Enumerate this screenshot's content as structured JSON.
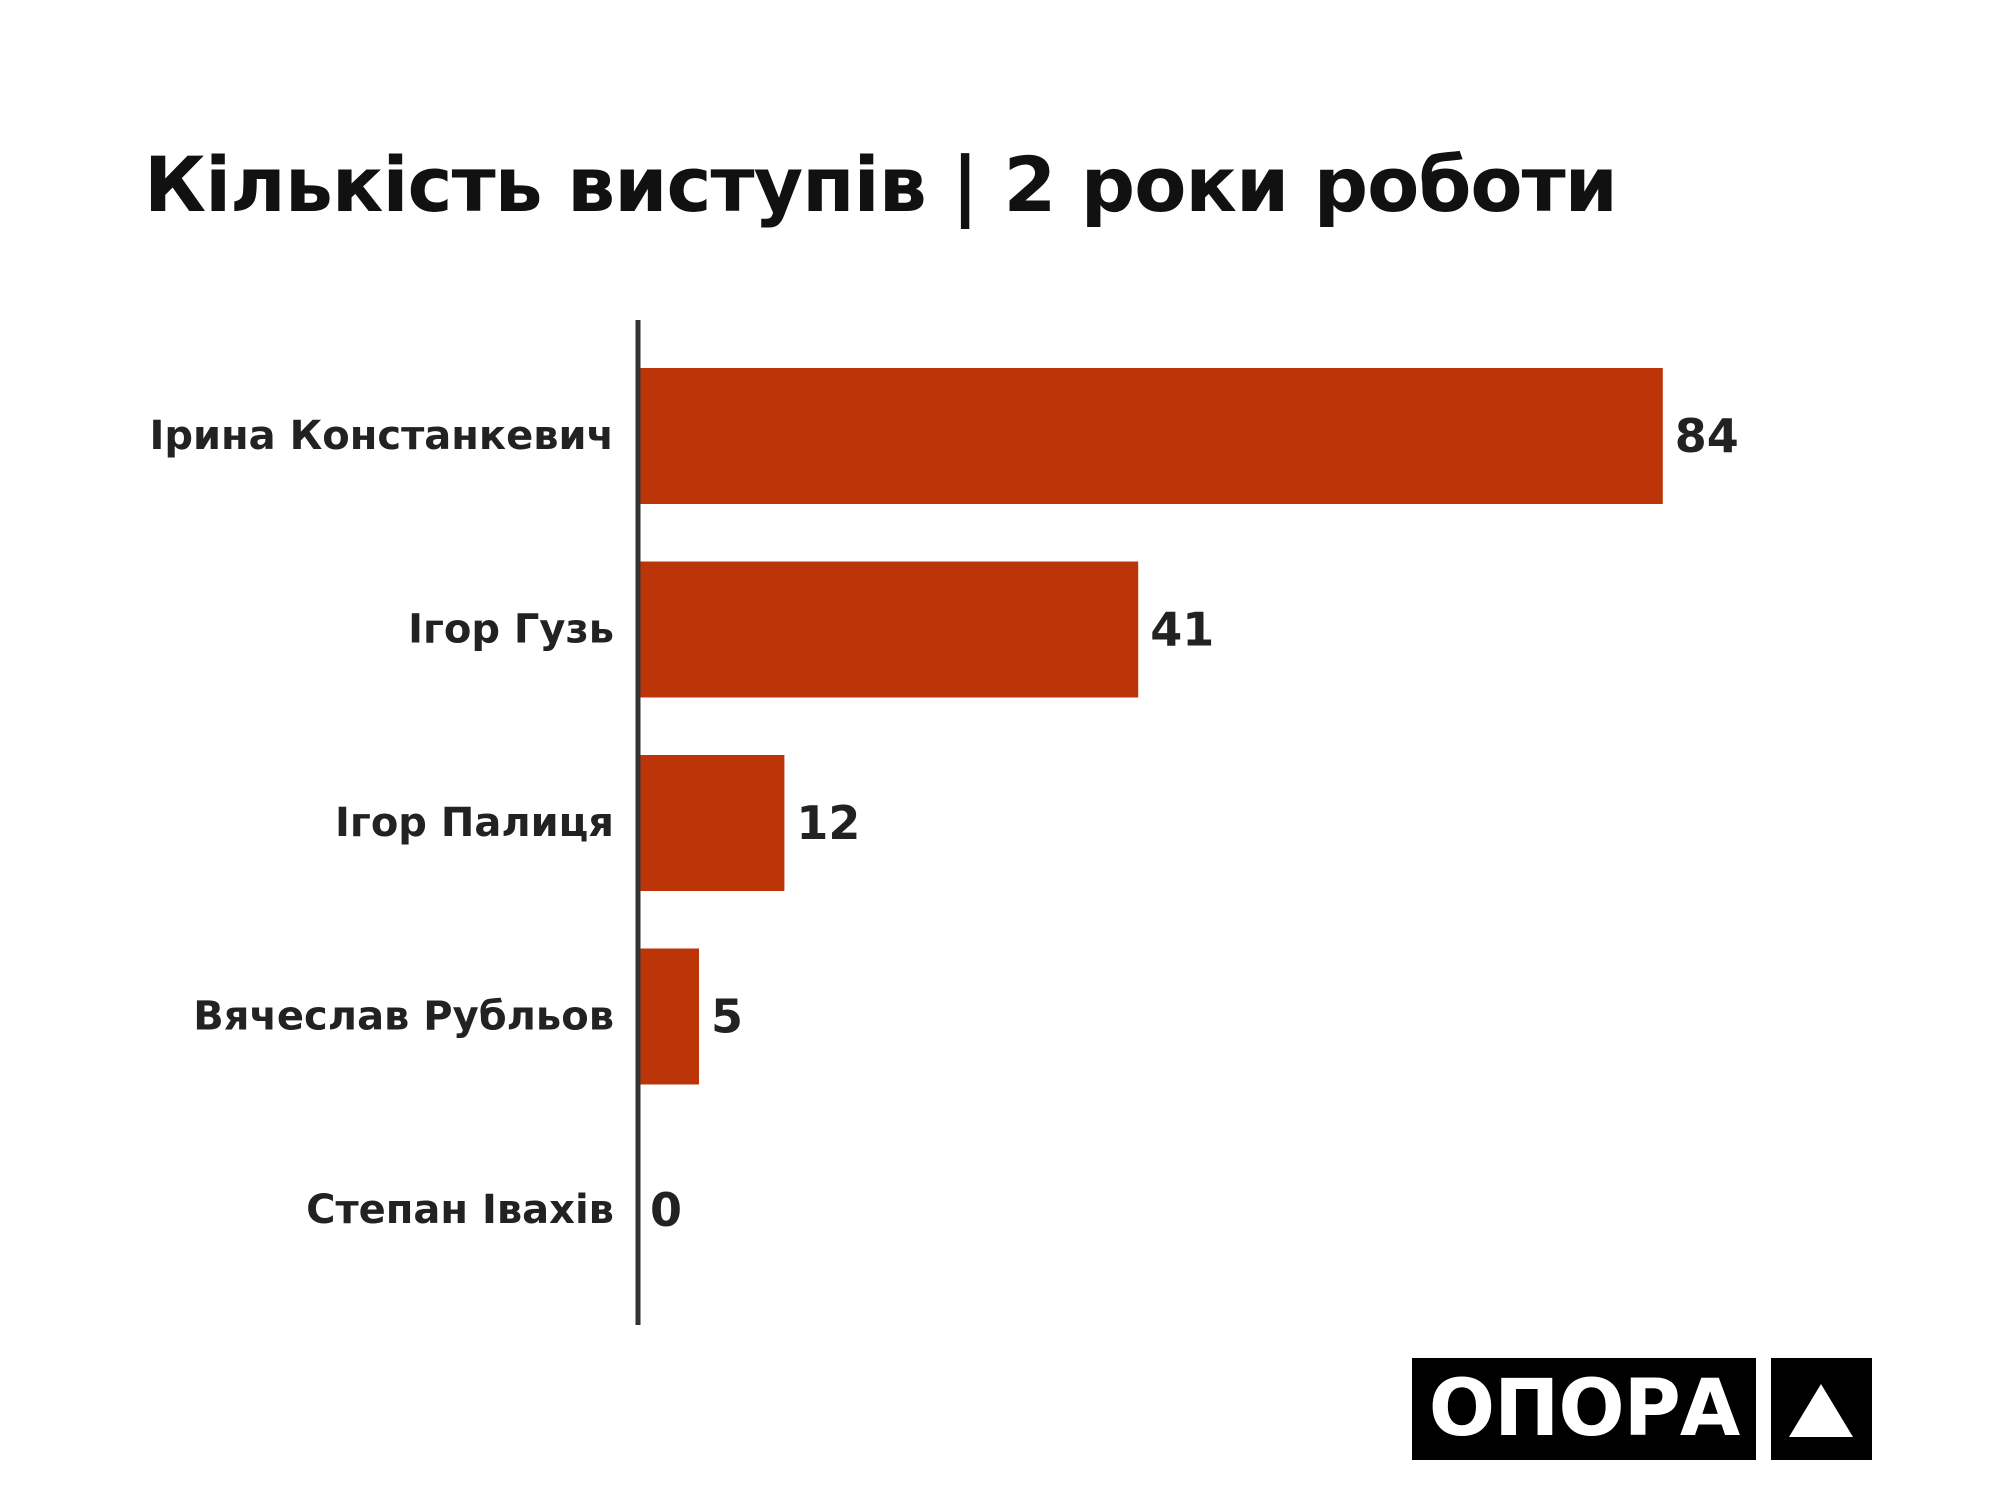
{
  "chart_data": {
    "type": "bar",
    "orientation": "horizontal",
    "title": "Кількість виступів | 2 роки роботи",
    "categories": [
      "Ірина Констанкевич",
      "Ігор Гузь",
      "Ігор Палиця",
      "Вячеслав Рубльов",
      "Степан Івахів"
    ],
    "values": [
      84,
      41,
      12,
      5,
      0
    ],
    "xlim": [
      0,
      90
    ],
    "grid": false,
    "data_labels": true,
    "bar_color": "#bb3508",
    "axis_color": "#333333",
    "text_color": "#222222"
  },
  "logo": {
    "text": "ОПОРА",
    "mark_icon": "triangle-up-icon"
  }
}
